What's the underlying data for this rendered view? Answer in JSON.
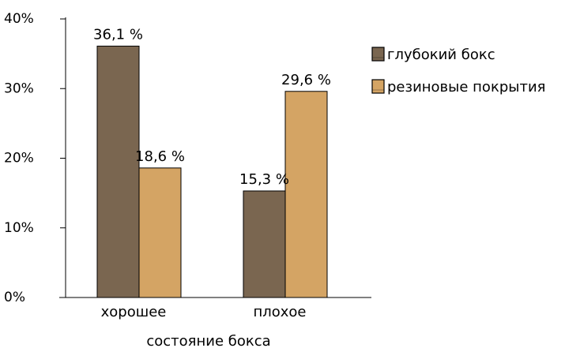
{
  "chart_data": {
    "type": "bar",
    "categories": [
      "хорошее",
      "плохое"
    ],
    "series": [
      {
        "name": "глубокий бокс",
        "values": [
          36.1,
          15.3
        ],
        "labels": [
          "36,1 %",
          "15,3 %"
        ],
        "color": "#7a6650"
      },
      {
        "name": "резиновые покрытия",
        "values": [
          18.6,
          29.6
        ],
        "labels": [
          "18,6 %",
          "29,6 %"
        ],
        "color": "#d4a464"
      }
    ],
    "xlabel": "состояние бокса",
    "ylabel": "",
    "ylim": [
      0,
      40
    ],
    "yticks": [
      0,
      10,
      20,
      30,
      40
    ],
    "ytick_labels": [
      "0%",
      "10%",
      "20%",
      "30%",
      "40%"
    ],
    "grid": false,
    "legend_position": "right"
  }
}
